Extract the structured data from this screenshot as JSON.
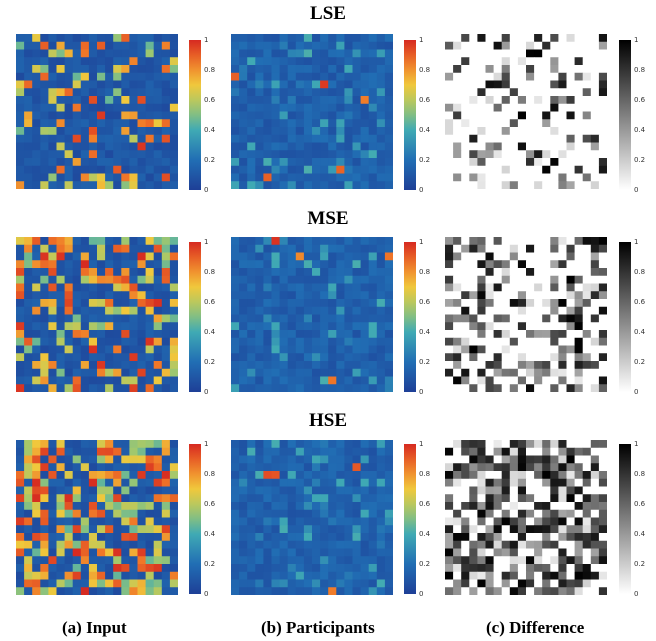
{
  "rows": [
    {
      "title": "LSE"
    },
    {
      "title": "MSE"
    },
    {
      "title": "HSE"
    }
  ],
  "captions": [
    "(a) Input",
    "(b) Participants",
    "(c) Difference"
  ],
  "colorbar_ticks": [
    "1",
    "0.8",
    "0.6",
    "0.4",
    "0.2",
    "0"
  ],
  "colors": {
    "jet_low": "#1e3f97",
    "jet_mid": "#f0e442",
    "jet_high": "#d62a21",
    "gray_low": "#ffffff",
    "gray_high": "#000000"
  },
  "chart_data": [
    {
      "type": "heatmap",
      "row": "LSE",
      "column": "(a) Input",
      "colormap": "jet",
      "range": [
        0,
        1
      ],
      "grid": [
        20,
        20
      ],
      "level": "low"
    },
    {
      "type": "heatmap",
      "row": "LSE",
      "column": "(b) Participants",
      "colormap": "jet",
      "range": [
        0,
        1
      ],
      "grid": [
        20,
        20
      ],
      "level": "low"
    },
    {
      "type": "heatmap",
      "row": "LSE",
      "column": "(c) Difference",
      "colormap": "gray",
      "range": [
        0,
        1
      ],
      "grid": [
        20,
        20
      ],
      "level": "low"
    },
    {
      "type": "heatmap",
      "row": "MSE",
      "column": "(a) Input",
      "colormap": "jet",
      "range": [
        0,
        1
      ],
      "grid": [
        20,
        20
      ],
      "level": "medium"
    },
    {
      "type": "heatmap",
      "row": "MSE",
      "column": "(b) Participants",
      "colormap": "jet",
      "range": [
        0,
        1
      ],
      "grid": [
        20,
        20
      ],
      "level": "medium"
    },
    {
      "type": "heatmap",
      "row": "MSE",
      "column": "(c) Difference",
      "colormap": "gray",
      "range": [
        0,
        1
      ],
      "grid": [
        20,
        20
      ],
      "level": "medium"
    },
    {
      "type": "heatmap",
      "row": "HSE",
      "column": "(a) Input",
      "colormap": "jet",
      "range": [
        0,
        1
      ],
      "grid": [
        20,
        20
      ],
      "level": "high"
    },
    {
      "type": "heatmap",
      "row": "HSE",
      "column": "(b) Participants",
      "colormap": "jet",
      "range": [
        0,
        1
      ],
      "grid": [
        20,
        20
      ],
      "level": "high"
    },
    {
      "type": "heatmap",
      "row": "HSE",
      "column": "(c) Difference",
      "colormap": "gray",
      "range": [
        0,
        1
      ],
      "grid": [
        20,
        20
      ],
      "level": "high"
    }
  ]
}
